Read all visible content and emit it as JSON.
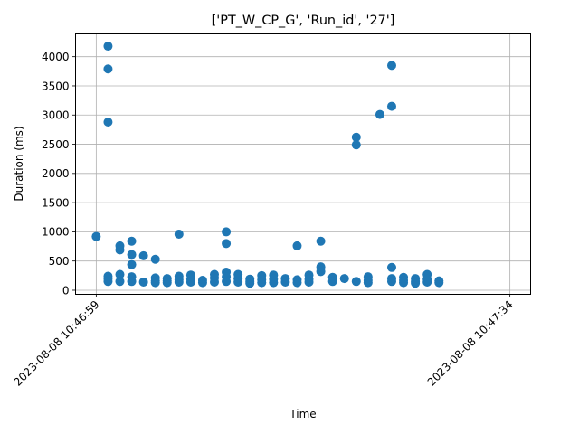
{
  "chart_data": {
    "type": "scatter",
    "title": "['PT_W_CP_G', 'Run_id', '27']",
    "xlabel": "Time",
    "ylabel": "Duration (ms)",
    "x_unit": "seconds after 2023-08-08 10:46:59",
    "xlim": [
      -1.75,
      36.75
    ],
    "ylim": [
      -70,
      4390
    ],
    "yticks": [
      0,
      500,
      1000,
      1500,
      2000,
      2500,
      3000,
      3500,
      4000
    ],
    "xticks": [
      {
        "value": 0,
        "label": "2023-08-08 10:46:59"
      },
      {
        "value": 35,
        "label": "2023-08-08 10:47:34"
      }
    ],
    "grid": true,
    "marker_color": "#1f77b4",
    "points": [
      {
        "t": 0,
        "y": 920
      },
      {
        "t": 1,
        "y": 4180
      },
      {
        "t": 1,
        "y": 3790
      },
      {
        "t": 1,
        "y": 2880
      },
      {
        "t": 1,
        "y": 240
      },
      {
        "t": 1,
        "y": 200
      },
      {
        "t": 1,
        "y": 150
      },
      {
        "t": 2,
        "y": 760
      },
      {
        "t": 2,
        "y": 690
      },
      {
        "t": 2,
        "y": 270
      },
      {
        "t": 2,
        "y": 150
      },
      {
        "t": 3,
        "y": 840
      },
      {
        "t": 3,
        "y": 610
      },
      {
        "t": 3,
        "y": 440
      },
      {
        "t": 3,
        "y": 230
      },
      {
        "t": 3,
        "y": 150
      },
      {
        "t": 4,
        "y": 590
      },
      {
        "t": 4,
        "y": 140
      },
      {
        "t": 5,
        "y": 530
      },
      {
        "t": 5,
        "y": 210
      },
      {
        "t": 5,
        "y": 160
      },
      {
        "t": 5,
        "y": 130
      },
      {
        "t": 6,
        "y": 200
      },
      {
        "t": 6,
        "y": 160
      },
      {
        "t": 6,
        "y": 130
      },
      {
        "t": 7,
        "y": 960
      },
      {
        "t": 7,
        "y": 240
      },
      {
        "t": 7,
        "y": 180
      },
      {
        "t": 7,
        "y": 140
      },
      {
        "t": 8,
        "y": 260
      },
      {
        "t": 8,
        "y": 190
      },
      {
        "t": 8,
        "y": 140
      },
      {
        "t": 9,
        "y": 170
      },
      {
        "t": 9,
        "y": 130
      },
      {
        "t": 10,
        "y": 270
      },
      {
        "t": 10,
        "y": 210
      },
      {
        "t": 10,
        "y": 140
      },
      {
        "t": 11,
        "y": 1000
      },
      {
        "t": 11,
        "y": 800
      },
      {
        "t": 11,
        "y": 310
      },
      {
        "t": 11,
        "y": 230
      },
      {
        "t": 11,
        "y": 150
      },
      {
        "t": 12,
        "y": 270
      },
      {
        "t": 12,
        "y": 200
      },
      {
        "t": 12,
        "y": 140
      },
      {
        "t": 13,
        "y": 190
      },
      {
        "t": 13,
        "y": 150
      },
      {
        "t": 13,
        "y": 120
      },
      {
        "t": 14,
        "y": 250
      },
      {
        "t": 14,
        "y": 180
      },
      {
        "t": 14,
        "y": 130
      },
      {
        "t": 15,
        "y": 260
      },
      {
        "t": 15,
        "y": 190
      },
      {
        "t": 15,
        "y": 130
      },
      {
        "t": 16,
        "y": 200
      },
      {
        "t": 16,
        "y": 140
      },
      {
        "t": 17,
        "y": 760
      },
      {
        "t": 17,
        "y": 180
      },
      {
        "t": 17,
        "y": 130
      },
      {
        "t": 18,
        "y": 260
      },
      {
        "t": 18,
        "y": 190
      },
      {
        "t": 18,
        "y": 140
      },
      {
        "t": 19,
        "y": 840
      },
      {
        "t": 19,
        "y": 400
      },
      {
        "t": 19,
        "y": 320
      },
      {
        "t": 20,
        "y": 220
      },
      {
        "t": 20,
        "y": 150
      },
      {
        "t": 21,
        "y": 200
      },
      {
        "t": 22,
        "y": 2620
      },
      {
        "t": 22,
        "y": 2490
      },
      {
        "t": 22,
        "y": 150
      },
      {
        "t": 23,
        "y": 230
      },
      {
        "t": 23,
        "y": 170
      },
      {
        "t": 23,
        "y": 130
      },
      {
        "t": 24,
        "y": 3010
      },
      {
        "t": 25,
        "y": 3850
      },
      {
        "t": 25,
        "y": 3150
      },
      {
        "t": 25,
        "y": 390
      },
      {
        "t": 25,
        "y": 200
      },
      {
        "t": 25,
        "y": 150
      },
      {
        "t": 26,
        "y": 220
      },
      {
        "t": 26,
        "y": 170
      },
      {
        "t": 26,
        "y": 130
      },
      {
        "t": 27,
        "y": 200
      },
      {
        "t": 27,
        "y": 150
      },
      {
        "t": 27,
        "y": 120
      },
      {
        "t": 28,
        "y": 270
      },
      {
        "t": 28,
        "y": 190
      },
      {
        "t": 28,
        "y": 140
      },
      {
        "t": 29,
        "y": 160
      },
      {
        "t": 29,
        "y": 130
      }
    ]
  }
}
